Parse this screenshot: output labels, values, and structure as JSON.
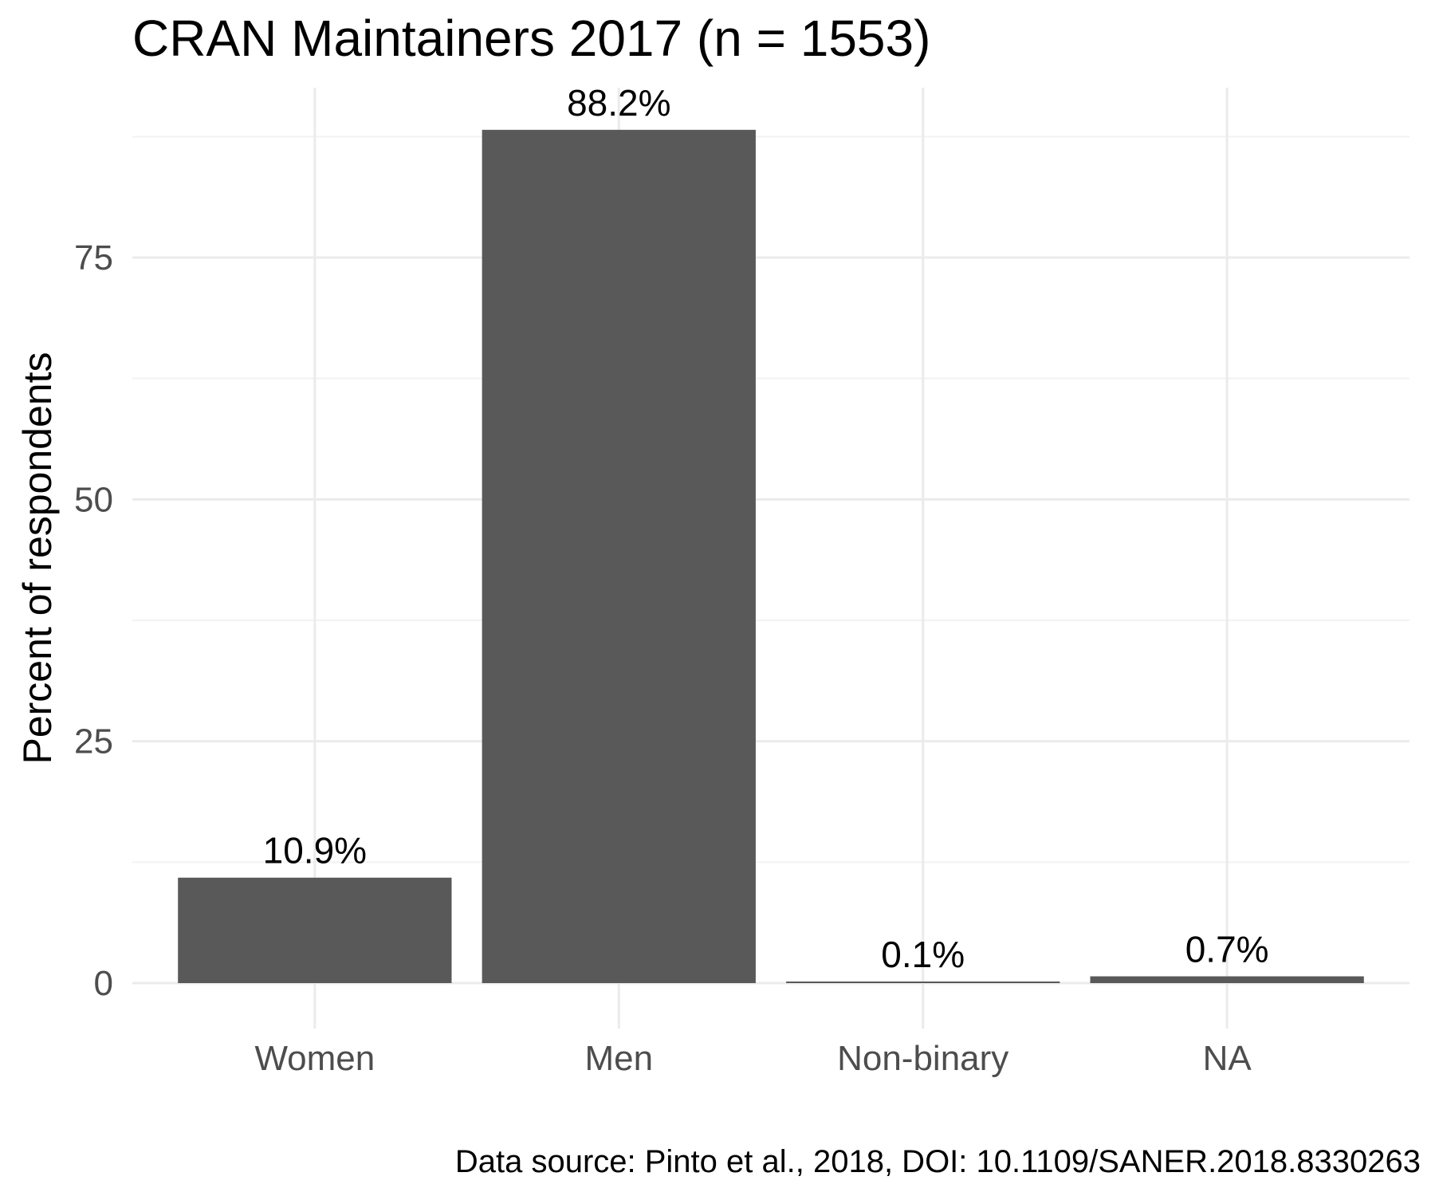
{
  "chart_data": {
    "type": "bar",
    "title": "CRAN Maintainers 2017 (n = 1553)",
    "xlabel": "",
    "ylabel": "Percent of respondents",
    "caption": "Data source: Pinto et al., 2018, DOI: 10.1109/SANER.2018.8330263",
    "categories": [
      "Women",
      "Men",
      "Non-binary",
      "NA"
    ],
    "values": [
      10.9,
      88.2,
      0.1,
      0.7
    ],
    "data_labels": [
      "10.9%",
      "88.2%",
      "0.1%",
      "0.7%"
    ],
    "yticks": [
      0,
      25,
      50,
      75
    ],
    "ytick_labels": [
      "0",
      "25",
      "50",
      "75"
    ],
    "ylim": [
      -4.2,
      92.6
    ],
    "grid": true,
    "legend": "none",
    "bar_color": "#595959",
    "grid_major_color": "#ebebeb",
    "grid_minor_color": "#f2f2f2"
  }
}
